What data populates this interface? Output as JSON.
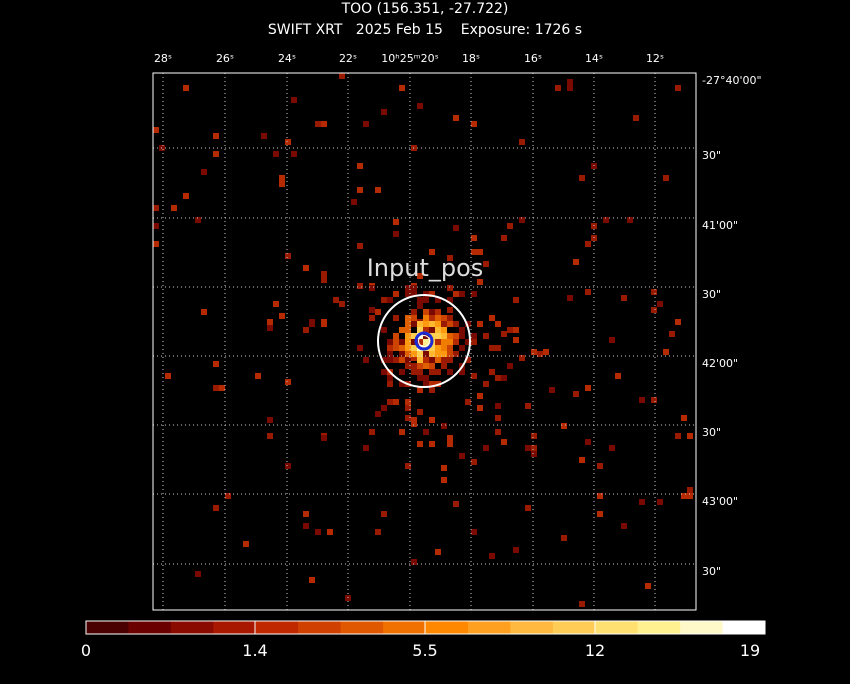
{
  "header": {
    "title": "TOO (156.351, -27.722)",
    "subtitle": "SWIFT XRT   2025 Feb 15    Exposure: 1726 s"
  },
  "ra_labels": [
    "28ˢ",
    "26ˢ",
    "24ˢ",
    "22ˢ",
    "10ʰ25ᵐ20ˢ",
    "18ˢ",
    "16ˢ",
    "14ˢ",
    "12ˢ"
  ],
  "dec_labels": [
    "-27°40'00\"",
    "30\"",
    "41'00\"",
    "30\"",
    "42'00\"",
    "30\"",
    "43'00\"",
    "30\""
  ],
  "annotation": "Input_pos",
  "colorbar": {
    "labels": [
      "0",
      "1.4",
      "5.5",
      "12",
      "19"
    ]
  }
}
